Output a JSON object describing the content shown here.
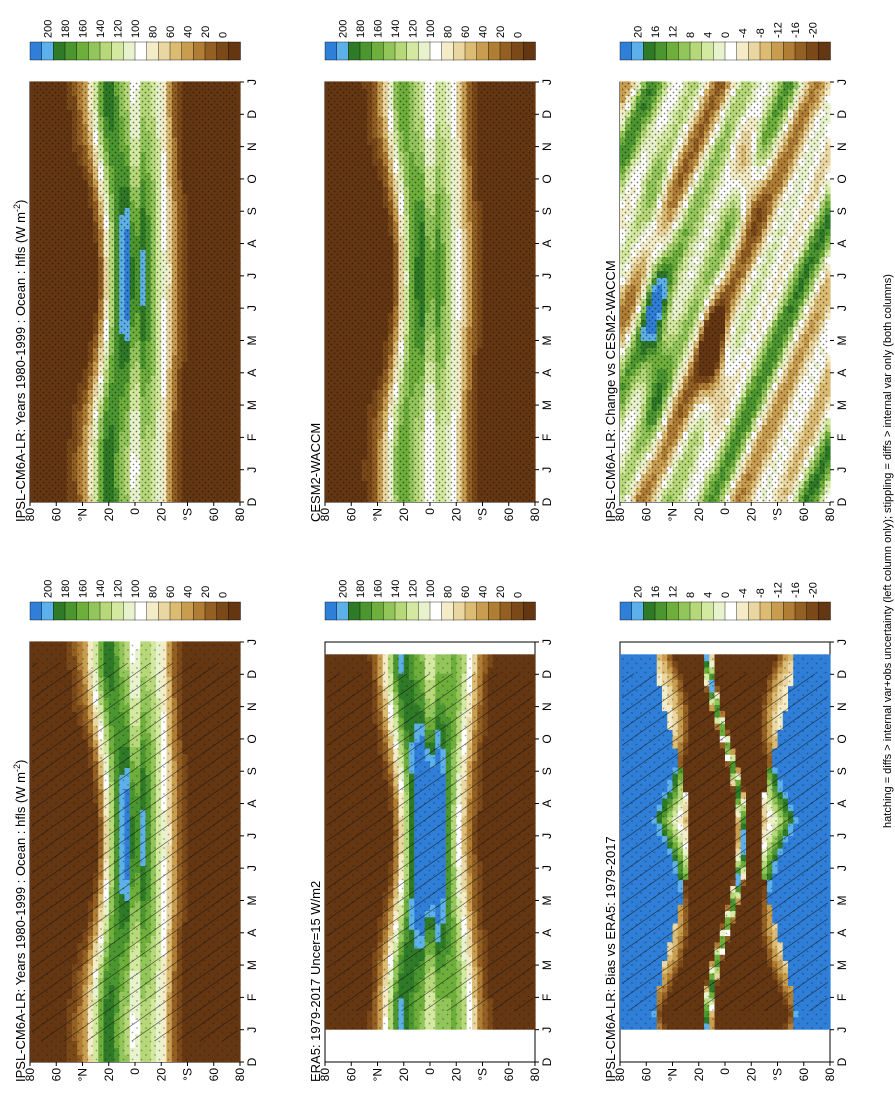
{
  "footnote": "hatching = diffs > internal var+obs uncertainty (left column only); stippling = diffs > internal var only (both columns)",
  "panels": [
    {
      "id": "p1",
      "title": "IPSL-CM6A-LR: Years 1980-1999 : Ocean : hfls (W m",
      "title_sup": "-2",
      "title_end": ")",
      "kind": "abs",
      "model": "ipsl",
      "hatch": true,
      "stipple": "sparse",
      "scale": "abs"
    },
    {
      "id": "p2",
      "title": "IPSL-CM6A-LR: Years 1980-1999 : Ocean : hfls (W m",
      "title_sup": "-2",
      "title_end": ")",
      "kind": "abs",
      "model": "ipsl",
      "hatch": false,
      "stipple": "dense",
      "scale": "abs"
    },
    {
      "id": "p3",
      "title": "ERA5: 1979-2017 Uncer=15 W/m2",
      "title_sup": "",
      "title_end": "",
      "kind": "obs",
      "model": "era5",
      "hatch": true,
      "stipple": "sparse",
      "scale": "abs"
    },
    {
      "id": "p4",
      "title": "CESM2-WACCM",
      "title_sup": "",
      "title_end": "",
      "kind": "abs",
      "model": "cesm",
      "hatch": false,
      "stipple": "dense",
      "scale": "abs"
    },
    {
      "id": "p5",
      "title": "IPSL-CM6A-LR: Bias vs ERA5: 1979-2017",
      "title_sup": "",
      "title_end": "",
      "kind": "bias",
      "model": "bias",
      "hatch": true,
      "stipple": "sparse",
      "scale": "diff"
    },
    {
      "id": "p6",
      "title": "IPSL-CM6A-LR: Change vs CESM2-WACCM",
      "title_sup": "",
      "title_end": "",
      "kind": "change",
      "model": "change",
      "hatch": false,
      "stipple": "dense",
      "scale": "diff"
    }
  ],
  "x_ticks": [
    "D",
    "J",
    "F",
    "M",
    "A",
    "M",
    "J",
    "J",
    "A",
    "S",
    "O",
    "N",
    "D",
    "J"
  ],
  "y_ticks": [
    "80",
    "60",
    "°N",
    "20",
    "0",
    "20",
    "°S",
    "60",
    "80"
  ],
  "colorbars": {
    "abs": {
      "labels": [
        "200",
        "180",
        "160",
        "140",
        "120",
        "100",
        "80",
        "60",
        "40",
        "20",
        "0"
      ],
      "colors": [
        "#2f7fd8",
        "#5db1ea",
        "#2e7a26",
        "#4c9630",
        "#6eaf3b",
        "#93c65a",
        "#b6d878",
        "#d3e99f",
        "#e8f2cc",
        "#ffffff",
        "#f4ecc6",
        "#ead6a0",
        "#dcbb72",
        "#c99d4f",
        "#b07d34",
        "#935f22",
        "#7b4818",
        "#653612"
      ]
    },
    "diff": {
      "labels": [
        "20",
        "16",
        "12",
        "8",
        "4",
        "0",
        "-4",
        "-8",
        "-12",
        "-16",
        "-20"
      ],
      "colors": [
        "#2f7fd8",
        "#5db1ea",
        "#2e7a26",
        "#4c9630",
        "#6eaf3b",
        "#93c65a",
        "#b6d878",
        "#d3e99f",
        "#e8f2cc",
        "#ffffff",
        "#f4ecc6",
        "#ead6a0",
        "#dcbb72",
        "#c99d4f",
        "#b07d34",
        "#935f22",
        "#7b4818",
        "#653612"
      ]
    }
  },
  "chart_data": [
    {
      "type": "heatmap",
      "title": "IPSL-CM6A-LR: Years 1980-1999 : Ocean : hfls (W m-2)",
      "xlabel": "",
      "ylabel": "",
      "x": [
        "D",
        "J",
        "F",
        "M",
        "A",
        "M",
        "J",
        "J",
        "A",
        "S",
        "O",
        "N",
        "D",
        "J"
      ],
      "y": [
        "80",
        "60",
        "°N",
        "20",
        "0",
        "20",
        "°S",
        "60",
        "80"
      ],
      "zlim": [
        0,
        200
      ],
      "overlay": "hatching + stippling"
    },
    {
      "type": "heatmap",
      "title": "IPSL-CM6A-LR: Years 1980-1999 : Ocean : hfls (W m-2)",
      "xlabel": "",
      "ylabel": "",
      "x": [
        "D",
        "J",
        "F",
        "M",
        "A",
        "M",
        "J",
        "J",
        "A",
        "S",
        "O",
        "N",
        "D",
        "J"
      ],
      "y": [
        "80",
        "60",
        "°N",
        "20",
        "0",
        "20",
        "°S",
        "60",
        "80"
      ],
      "zlim": [
        0,
        200
      ],
      "overlay": "stippling"
    },
    {
      "type": "heatmap",
      "title": "ERA5: 1979-2017 Uncer=15 W/m2",
      "xlabel": "",
      "ylabel": "",
      "x": [
        "D",
        "J",
        "F",
        "M",
        "A",
        "M",
        "J",
        "J",
        "A",
        "S",
        "O",
        "N",
        "D",
        "J"
      ],
      "y": [
        "80",
        "60",
        "°N",
        "20",
        "0",
        "20",
        "°S",
        "60",
        "80"
      ],
      "zlim": [
        0,
        200
      ],
      "overlay": "hatching + stippling"
    },
    {
      "type": "heatmap",
      "title": "CESM2-WACCM",
      "xlabel": "",
      "ylabel": "",
      "x": [
        "D",
        "J",
        "F",
        "M",
        "A",
        "M",
        "J",
        "J",
        "A",
        "S",
        "O",
        "N",
        "D",
        "J"
      ],
      "y": [
        "80",
        "60",
        "°N",
        "20",
        "0",
        "20",
        "°S",
        "60",
        "80"
      ],
      "zlim": [
        0,
        200
      ],
      "overlay": "stippling"
    },
    {
      "type": "heatmap",
      "title": "IPSL-CM6A-LR: Bias vs ERA5: 1979-2017",
      "xlabel": "",
      "ylabel": "",
      "x": [
        "D",
        "J",
        "F",
        "M",
        "A",
        "M",
        "J",
        "J",
        "A",
        "S",
        "O",
        "N",
        "D",
        "J"
      ],
      "y": [
        "80",
        "60",
        "°N",
        "20",
        "0",
        "20",
        "°S",
        "60",
        "80"
      ],
      "zlim": [
        -20,
        20
      ],
      "overlay": "hatching + stippling"
    },
    {
      "type": "heatmap",
      "title": "IPSL-CM6A-LR: Change vs CESM2-WACCM",
      "xlabel": "",
      "ylabel": "",
      "x": [
        "D",
        "J",
        "F",
        "M",
        "A",
        "M",
        "J",
        "J",
        "A",
        "S",
        "O",
        "N",
        "D",
        "J"
      ],
      "y": [
        "80",
        "60",
        "°N",
        "20",
        "0",
        "20",
        "°S",
        "60",
        "80"
      ],
      "zlim": [
        -20,
        20
      ],
      "overlay": "stippling"
    }
  ]
}
